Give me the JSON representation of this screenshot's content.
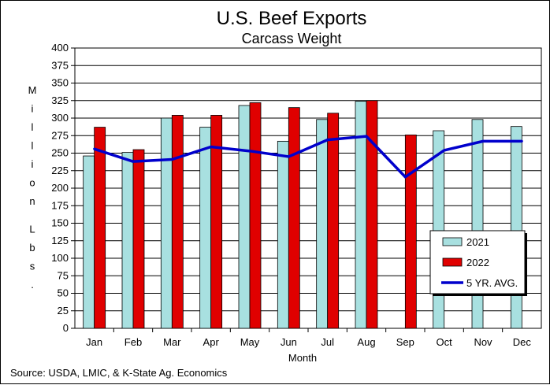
{
  "chart_data": {
    "type": "bar",
    "title": "U.S. Beef Exports",
    "subtitle": "Carcass Weight",
    "xlabel": "Month",
    "ylabel": "Million Lbs.",
    "ylim": [
      0,
      400
    ],
    "ytick_step": 25,
    "grid": true,
    "legend_position": "lower-right",
    "source": "Source:  USDA, LMIC, & K-State Ag. Economics",
    "categories": [
      "Jan",
      "Feb",
      "Mar",
      "Apr",
      "May",
      "Jun",
      "Jul",
      "Aug",
      "Sep",
      "Oct",
      "Nov",
      "Dec"
    ],
    "series": [
      {
        "name": "2021",
        "kind": "bar",
        "color": "#a8e0e0",
        "values": [
          246,
          251,
          300,
          287,
          318,
          267,
          298,
          324,
          null,
          282,
          298,
          288
        ]
      },
      {
        "name": "2022",
        "kind": "bar",
        "color": "#e00000",
        "values": [
          287,
          255,
          304,
          304,
          322,
          315,
          307,
          325,
          276,
          null,
          null,
          null
        ]
      },
      {
        "name": "5 YR. AVG.",
        "kind": "line",
        "color": "#0000cc",
        "values": [
          256,
          238,
          241,
          259,
          253,
          245,
          269,
          274,
          216,
          254,
          267,
          267
        ]
      }
    ]
  }
}
